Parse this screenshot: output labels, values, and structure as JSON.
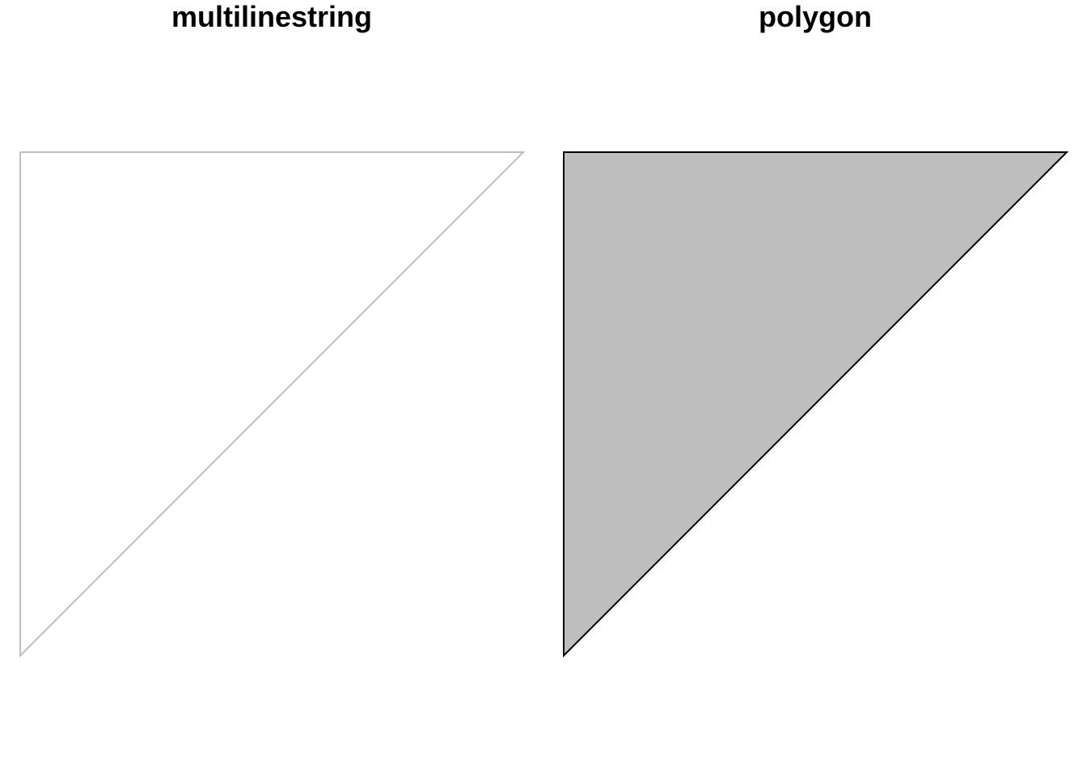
{
  "panels": [
    {
      "title": "multilinestring",
      "geometry_type": "multilinestring",
      "vertices": [
        [
          0,
          1
        ],
        [
          1,
          1
        ],
        [
          0,
          0
        ],
        [
          0,
          1
        ]
      ],
      "stroke_color": "#bebebe",
      "fill_color": "none"
    },
    {
      "title": "polygon",
      "geometry_type": "polygon",
      "vertices": [
        [
          0,
          1
        ],
        [
          1,
          1
        ],
        [
          0,
          0
        ],
        [
          0,
          1
        ]
      ],
      "stroke_color": "#000000",
      "fill_color": "#bebebe"
    }
  ]
}
